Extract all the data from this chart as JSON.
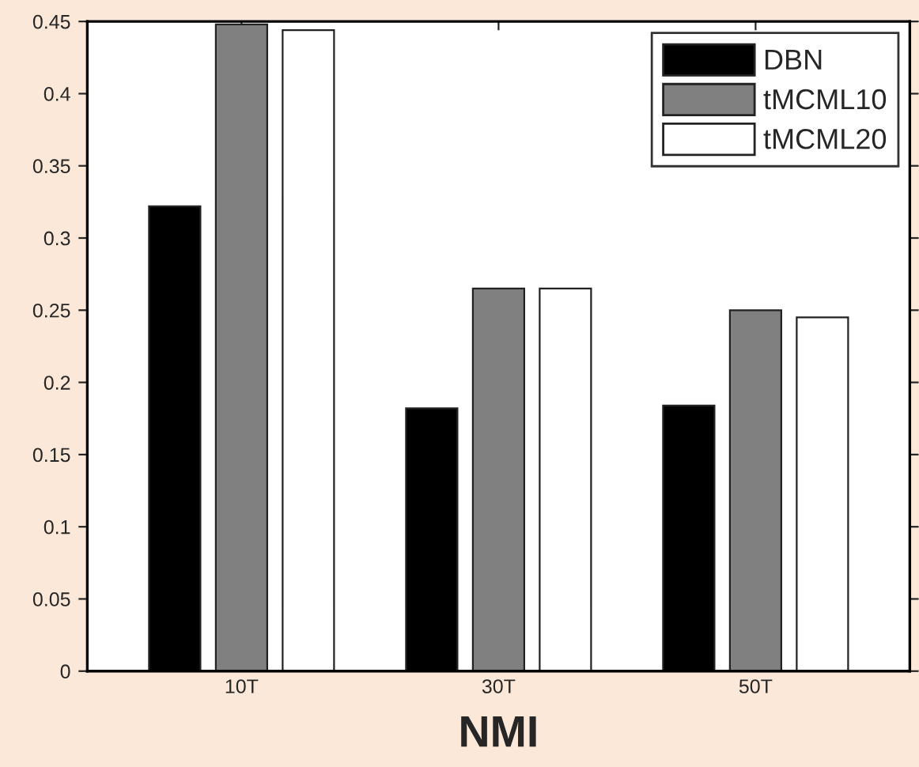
{
  "chart_data": {
    "type": "bar",
    "xlabel": "NMI",
    "categories": [
      "10T",
      "30T",
      "50T"
    ],
    "series": [
      {
        "name": "DBN",
        "color": "#000000",
        "values": [
          0.322,
          0.182,
          0.184
        ]
      },
      {
        "name": "tMCML10",
        "color": "#808080",
        "values": [
          0.448,
          0.265,
          0.25
        ]
      },
      {
        "name": "tMCML20",
        "color": "#ffffff",
        "values": [
          0.444,
          0.265,
          0.245
        ]
      }
    ],
    "ylim": [
      0,
      0.45
    ],
    "yticks": [
      0,
      0.05,
      0.1,
      0.15,
      0.2,
      0.25,
      0.3,
      0.35,
      0.4,
      0.45
    ],
    "grid": false,
    "legend": "top right"
  }
}
